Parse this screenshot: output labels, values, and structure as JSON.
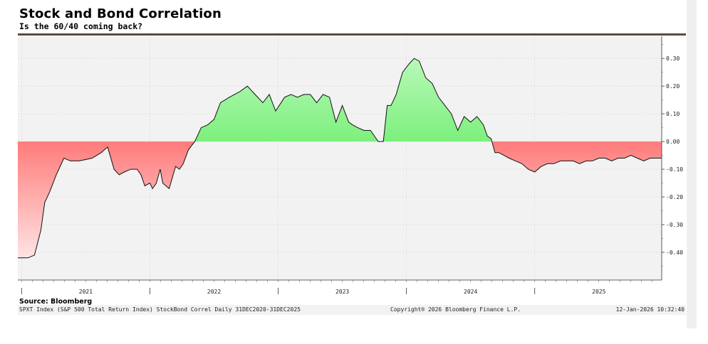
{
  "header": {
    "title": "Stock and Bond Correlation",
    "subtitle": "Is the 60/40 coming back?"
  },
  "footer": {
    "source": "Source: Bloomberg",
    "description": "SPXT Index (S&P 500 Total Return Index) StockBond Correl Daily 31DEC2020-31DEC2025",
    "copyright": "Copyright® 2026 Bloomberg Finance L.P.",
    "timestamp": "12-Jan-2026 10:32:40"
  },
  "colors": {
    "positive_fill": "#7df07d",
    "negative_fill": "#ff7b7b",
    "line": "#111111",
    "plot_background": "#f2f2f2",
    "top_band": "#5a4a44"
  },
  "chart_data": {
    "type": "area",
    "title": "Stock and Bond Correlation",
    "subtitle": "Is the 60/40 coming back?",
    "xlabel": "",
    "ylabel": "",
    "x_range": [
      2020.97,
      2025.99
    ],
    "ylim": [
      -0.5,
      0.38
    ],
    "y_ticks": [
      0.3,
      0.2,
      0.1,
      0.0,
      -0.1,
      -0.2,
      -0.3,
      -0.4
    ],
    "y_tick_labels": [
      "0.30",
      "0.20",
      "0.10",
      "0.00",
      "-0.10",
      "-0.20",
      "-0.30",
      "-0.40"
    ],
    "x_tick_labels": [
      "2021",
      "2022",
      "2023",
      "2024",
      "2025"
    ],
    "grid": true,
    "legend": "none",
    "series": [
      {
        "x": [
          2020.97,
          2021.05,
          2021.1,
          2021.15,
          2021.18,
          2021.22,
          2021.27,
          2021.33,
          2021.38,
          2021.45,
          2021.55,
          2021.62,
          2021.67,
          2021.72,
          2021.76,
          2021.8,
          2021.85,
          2021.9,
          2021.93,
          2021.96,
          2022.0,
          2022.02,
          2022.05,
          2022.08,
          2022.1,
          2022.15,
          2022.2,
          2022.23,
          2022.26,
          2022.3,
          2022.35,
          2022.4,
          2022.45,
          2022.5,
          2022.55,
          2022.62,
          2022.7,
          2022.76,
          2022.82,
          2022.88,
          2022.93,
          2022.98,
          2023.05,
          2023.1,
          2023.15,
          2023.2,
          2023.25,
          2023.3,
          2023.35,
          2023.4,
          2023.45,
          2023.5,
          2023.55,
          2023.58,
          2023.62,
          2023.67,
          2023.72,
          2023.78,
          2023.82,
          2023.85,
          2023.88,
          2023.92,
          2023.97,
          2024.02,
          2024.06,
          2024.1,
          2024.15,
          2024.2,
          2024.25,
          2024.3,
          2024.35,
          2024.4,
          2024.45,
          2024.5,
          2024.55,
          2024.6,
          2024.63,
          2024.66,
          2024.69,
          2024.72,
          2024.76,
          2024.8,
          2024.85,
          2024.9,
          2024.95,
          2025.0,
          2025.05,
          2025.1,
          2025.15,
          2025.2,
          2025.25,
          2025.3,
          2025.35,
          2025.4,
          2025.45,
          2025.5,
          2025.55,
          2025.6,
          2025.65,
          2025.7,
          2025.75,
          2025.8,
          2025.85,
          2025.9,
          2025.95,
          2025.99
        ],
        "values": [
          -0.42,
          -0.42,
          -0.41,
          -0.32,
          -0.22,
          -0.18,
          -0.12,
          -0.06,
          -0.07,
          -0.07,
          -0.06,
          -0.04,
          -0.02,
          -0.1,
          -0.12,
          -0.11,
          -0.1,
          -0.1,
          -0.12,
          -0.16,
          -0.15,
          -0.17,
          -0.15,
          -0.1,
          -0.15,
          -0.17,
          -0.09,
          -0.1,
          -0.08,
          -0.03,
          0.0,
          0.05,
          0.06,
          0.08,
          0.14,
          0.16,
          0.18,
          0.2,
          0.17,
          0.14,
          0.17,
          0.11,
          0.16,
          0.17,
          0.16,
          0.17,
          0.17,
          0.14,
          0.17,
          0.16,
          0.07,
          0.13,
          0.07,
          0.06,
          0.05,
          0.04,
          0.04,
          0.0,
          0.0,
          0.13,
          0.13,
          0.17,
          0.25,
          0.28,
          0.3,
          0.29,
          0.23,
          0.21,
          0.16,
          0.13,
          0.1,
          0.04,
          0.09,
          0.07,
          0.09,
          0.06,
          0.02,
          0.01,
          -0.04,
          -0.04,
          -0.05,
          -0.06,
          -0.07,
          -0.08,
          -0.1,
          -0.11,
          -0.09,
          -0.08,
          -0.08,
          -0.07,
          -0.07,
          -0.07,
          -0.08,
          -0.07,
          -0.07,
          -0.06,
          -0.06,
          -0.07,
          -0.06,
          -0.06,
          -0.05,
          -0.06,
          -0.07,
          -0.06,
          -0.06,
          -0.06
        ]
      }
    ]
  }
}
